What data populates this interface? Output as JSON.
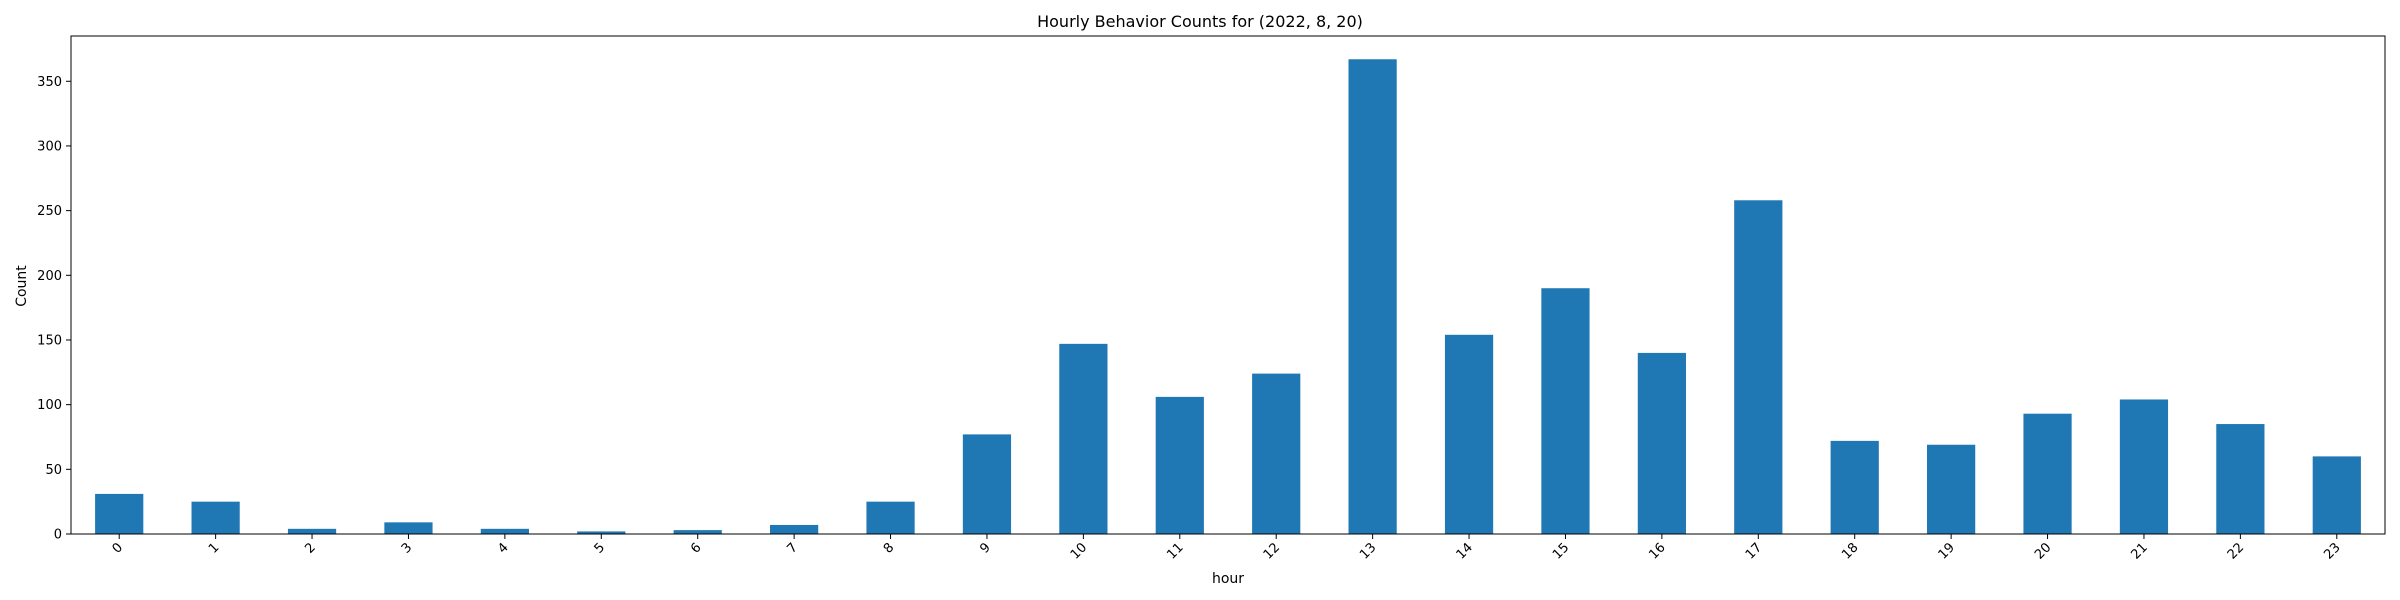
{
  "chart_data": {
    "type": "bar",
    "title": "Hourly Behavior Counts for (2022, 8, 20)",
    "xlabel": "hour",
    "ylabel": "Count",
    "categories": [
      "0",
      "1",
      "2",
      "3",
      "4",
      "5",
      "6",
      "7",
      "8",
      "9",
      "10",
      "11",
      "12",
      "13",
      "14",
      "15",
      "16",
      "17",
      "18",
      "19",
      "20",
      "21",
      "22",
      "23"
    ],
    "values": [
      31,
      25,
      4,
      9,
      4,
      2,
      3,
      7,
      25,
      77,
      147,
      106,
      124,
      367,
      154,
      190,
      140,
      258,
      72,
      69,
      93,
      104,
      85,
      60
    ],
    "ylim": [
      0,
      385
    ],
    "yticks": [
      0,
      50,
      100,
      150,
      200,
      250,
      300,
      350
    ],
    "xtick_rotation": -45,
    "bar_color": "#1f77b4",
    "grid": false,
    "legend": false
  }
}
